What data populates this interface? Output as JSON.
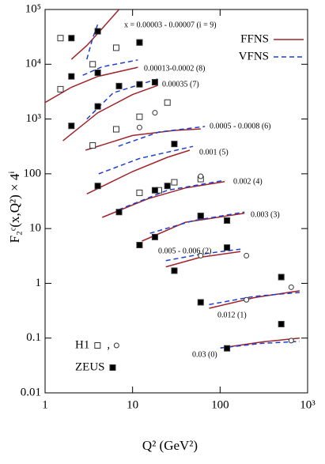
{
  "chart_data": {
    "type": "line",
    "xlabel": "Q² (GeV²)",
    "ylabel": "F₂ᶜ(x,Q²) × 4ⁱ",
    "log_x": true,
    "log_y": true,
    "xlim": [
      1,
      1000
    ],
    "ylim": [
      0.01,
      100000
    ],
    "xticks": [
      1,
      10,
      100,
      {
        "value": 1000,
        "label": "10³"
      }
    ],
    "yticks": [
      0.01,
      0.1,
      1,
      10,
      100,
      {
        "value": 1000,
        "label": "10³"
      },
      {
        "value": 10000,
        "label": "10⁴"
      },
      {
        "value": 100000,
        "label": "10⁵"
      }
    ],
    "legend": "upper right",
    "annotations": [
      "x = 0.00003 - 0.00007 (i = 9)",
      "0.00013-0.0002 (8)",
      "0.00035 (7)",
      "0.0005 - 0.0008 (6)",
      "0.001 (5)",
      "0.002 (4)",
      "0.003 (3)",
      "0.005 - 0.006 (2)",
      "0.012 (1)",
      "0.03 (0)"
    ],
    "series": [
      {
        "name": "FFNS",
        "color": "#a0242a",
        "dashed": false,
        "lines": [
          {
            "x": [
              2,
              3,
              4.5,
              7
            ],
            "values": [
              12300,
              22000,
              45000,
              100000
            ]
          },
          {
            "x": [
              1,
              2,
              4,
              11.5
            ],
            "values": [
              2000,
              3800,
              6000,
              8800
            ]
          },
          {
            "x": [
              1.6,
              4,
              10,
              19.4
            ],
            "values": [
              400,
              1300,
              2800,
              4100
            ]
          },
          {
            "x": [
              2.9,
              10,
              30,
              60
            ],
            "values": [
              270,
              500,
              620,
              660
            ]
          },
          {
            "x": [
              3,
              10,
              25,
              45
            ],
            "values": [
              43,
              110,
              200,
              270
            ]
          },
          {
            "x": [
              4.5,
              15,
              40,
              113
            ],
            "values": [
              16,
              35,
              55,
              72
            ]
          },
          {
            "x": [
              12.8,
              40,
              190
            ],
            "values": [
              5.9,
              13,
              19
            ]
          },
          {
            "x": [
              24,
              60,
              171
            ],
            "values": [
              2.0,
              3.0,
              3.8
            ]
          },
          {
            "x": [
              75,
              250,
              811
            ],
            "values": [
              0.35,
              0.55,
              0.73
            ]
          },
          {
            "x": [
              101,
              300,
              811
            ],
            "values": [
              0.066,
              0.085,
              0.1
            ]
          }
        ]
      },
      {
        "name": "VFNS",
        "color": "#1f3fd0",
        "dashed": true,
        "lines": [
          {
            "x": [
              3,
              3.5,
              4.1
            ],
            "values": [
              12300,
              30000,
              60000
            ]
          },
          {
            "x": [
              2.7,
              4.5,
              11.5
            ],
            "values": [
              6300,
              9000,
              12000
            ]
          },
          {
            "x": [
              3,
              6,
              19.4
            ],
            "values": [
              1000,
              3000,
              5400
            ]
          },
          {
            "x": [
              6.9,
              20,
              67
            ],
            "values": [
              320,
              580,
              730
            ]
          },
          {
            "x": [
              4.1,
              12,
              49
            ],
            "values": [
              100,
              190,
              316
            ]
          },
          {
            "x": [
              6.9,
              25,
              113
            ],
            "values": [
              22,
              50,
              76
            ]
          },
          {
            "x": [
              15.8,
              50,
              190
            ],
            "values": [
              8.2,
              14,
              20
            ]
          },
          {
            "x": [
              24,
              60,
              171
            ],
            "values": [
              2.6,
              3.4,
              4.2
            ]
          },
          {
            "x": [
              75,
              250,
              811
            ],
            "values": [
              0.41,
              0.58,
              0.68
            ]
          },
          {
            "x": [
              101,
              300,
              811
            ],
            "values": [
              0.066,
              0.08,
              0.087
            ]
          }
        ]
      }
    ],
    "points": [
      {
        "name": "H1",
        "marker": "square-open",
        "x": [
          1.5,
          1.5,
          3.5,
          6.5,
          12,
          3.5,
          6.5,
          12,
          25,
          12,
          20,
          30,
          60,
          60
        ],
        "values": [
          30000,
          3500,
          10000,
          20000,
          25000,
          330,
          650,
          1100,
          2000,
          45,
          50,
          70,
          80,
          17
        ]
      },
      {
        "name": "H1",
        "marker": "circle-open",
        "x": [
          12,
          18,
          60,
          60,
          200,
          200,
          650,
          650
        ],
        "values": [
          700,
          1300,
          90,
          3.2,
          3.2,
          0.5,
          0.85,
          0.09
        ]
      },
      {
        "name": "ZEUS",
        "marker": "square-filled",
        "x": [
          2,
          4,
          2,
          4,
          12,
          2,
          4,
          7,
          12,
          18,
          4,
          7,
          12,
          18,
          25,
          18,
          30,
          60,
          60,
          120,
          120,
          120,
          500,
          500,
          30
        ],
        "values": [
          30000,
          40000,
          6000,
          7000,
          25000,
          750,
          1700,
          4000,
          4300,
          4700,
          60,
          20,
          5,
          50,
          60,
          7,
          1.7,
          17,
          0.45,
          14,
          4.5,
          0.065,
          1.3,
          0.18,
          350
        ]
      }
    ],
    "legend_separator": ","
  }
}
